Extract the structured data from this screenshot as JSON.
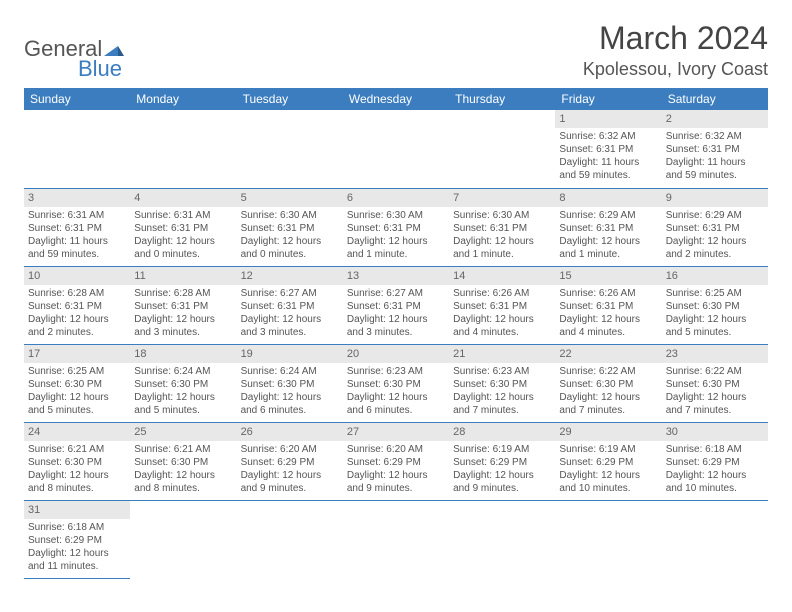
{
  "logo": {
    "part1": "General",
    "part2": "Blue"
  },
  "title": "March 2024",
  "location": "Kpolessou, Ivory Coast",
  "colors": {
    "header_bg": "#3b7dbf",
    "header_text": "#ffffff",
    "daynum_bg": "#e8e8e8",
    "text": "#555555",
    "border": "#3b7dbf"
  },
  "weekdays": [
    "Sunday",
    "Monday",
    "Tuesday",
    "Wednesday",
    "Thursday",
    "Friday",
    "Saturday"
  ],
  "weeks": [
    [
      null,
      null,
      null,
      null,
      null,
      {
        "n": "1",
        "sr": "Sunrise: 6:32 AM",
        "ss": "Sunset: 6:31 PM",
        "d1": "Daylight: 11 hours",
        "d2": "and 59 minutes."
      },
      {
        "n": "2",
        "sr": "Sunrise: 6:32 AM",
        "ss": "Sunset: 6:31 PM",
        "d1": "Daylight: 11 hours",
        "d2": "and 59 minutes."
      }
    ],
    [
      {
        "n": "3",
        "sr": "Sunrise: 6:31 AM",
        "ss": "Sunset: 6:31 PM",
        "d1": "Daylight: 11 hours",
        "d2": "and 59 minutes."
      },
      {
        "n": "4",
        "sr": "Sunrise: 6:31 AM",
        "ss": "Sunset: 6:31 PM",
        "d1": "Daylight: 12 hours",
        "d2": "and 0 minutes."
      },
      {
        "n": "5",
        "sr": "Sunrise: 6:30 AM",
        "ss": "Sunset: 6:31 PM",
        "d1": "Daylight: 12 hours",
        "d2": "and 0 minutes."
      },
      {
        "n": "6",
        "sr": "Sunrise: 6:30 AM",
        "ss": "Sunset: 6:31 PM",
        "d1": "Daylight: 12 hours",
        "d2": "and 1 minute."
      },
      {
        "n": "7",
        "sr": "Sunrise: 6:30 AM",
        "ss": "Sunset: 6:31 PM",
        "d1": "Daylight: 12 hours",
        "d2": "and 1 minute."
      },
      {
        "n": "8",
        "sr": "Sunrise: 6:29 AM",
        "ss": "Sunset: 6:31 PM",
        "d1": "Daylight: 12 hours",
        "d2": "and 1 minute."
      },
      {
        "n": "9",
        "sr": "Sunrise: 6:29 AM",
        "ss": "Sunset: 6:31 PM",
        "d1": "Daylight: 12 hours",
        "d2": "and 2 minutes."
      }
    ],
    [
      {
        "n": "10",
        "sr": "Sunrise: 6:28 AM",
        "ss": "Sunset: 6:31 PM",
        "d1": "Daylight: 12 hours",
        "d2": "and 2 minutes."
      },
      {
        "n": "11",
        "sr": "Sunrise: 6:28 AM",
        "ss": "Sunset: 6:31 PM",
        "d1": "Daylight: 12 hours",
        "d2": "and 3 minutes."
      },
      {
        "n": "12",
        "sr": "Sunrise: 6:27 AM",
        "ss": "Sunset: 6:31 PM",
        "d1": "Daylight: 12 hours",
        "d2": "and 3 minutes."
      },
      {
        "n": "13",
        "sr": "Sunrise: 6:27 AM",
        "ss": "Sunset: 6:31 PM",
        "d1": "Daylight: 12 hours",
        "d2": "and 3 minutes."
      },
      {
        "n": "14",
        "sr": "Sunrise: 6:26 AM",
        "ss": "Sunset: 6:31 PM",
        "d1": "Daylight: 12 hours",
        "d2": "and 4 minutes."
      },
      {
        "n": "15",
        "sr": "Sunrise: 6:26 AM",
        "ss": "Sunset: 6:31 PM",
        "d1": "Daylight: 12 hours",
        "d2": "and 4 minutes."
      },
      {
        "n": "16",
        "sr": "Sunrise: 6:25 AM",
        "ss": "Sunset: 6:30 PM",
        "d1": "Daylight: 12 hours",
        "d2": "and 5 minutes."
      }
    ],
    [
      {
        "n": "17",
        "sr": "Sunrise: 6:25 AM",
        "ss": "Sunset: 6:30 PM",
        "d1": "Daylight: 12 hours",
        "d2": "and 5 minutes."
      },
      {
        "n": "18",
        "sr": "Sunrise: 6:24 AM",
        "ss": "Sunset: 6:30 PM",
        "d1": "Daylight: 12 hours",
        "d2": "and 5 minutes."
      },
      {
        "n": "19",
        "sr": "Sunrise: 6:24 AM",
        "ss": "Sunset: 6:30 PM",
        "d1": "Daylight: 12 hours",
        "d2": "and 6 minutes."
      },
      {
        "n": "20",
        "sr": "Sunrise: 6:23 AM",
        "ss": "Sunset: 6:30 PM",
        "d1": "Daylight: 12 hours",
        "d2": "and 6 minutes."
      },
      {
        "n": "21",
        "sr": "Sunrise: 6:23 AM",
        "ss": "Sunset: 6:30 PM",
        "d1": "Daylight: 12 hours",
        "d2": "and 7 minutes."
      },
      {
        "n": "22",
        "sr": "Sunrise: 6:22 AM",
        "ss": "Sunset: 6:30 PM",
        "d1": "Daylight: 12 hours",
        "d2": "and 7 minutes."
      },
      {
        "n": "23",
        "sr": "Sunrise: 6:22 AM",
        "ss": "Sunset: 6:30 PM",
        "d1": "Daylight: 12 hours",
        "d2": "and 7 minutes."
      }
    ],
    [
      {
        "n": "24",
        "sr": "Sunrise: 6:21 AM",
        "ss": "Sunset: 6:30 PM",
        "d1": "Daylight: 12 hours",
        "d2": "and 8 minutes."
      },
      {
        "n": "25",
        "sr": "Sunrise: 6:21 AM",
        "ss": "Sunset: 6:30 PM",
        "d1": "Daylight: 12 hours",
        "d2": "and 8 minutes."
      },
      {
        "n": "26",
        "sr": "Sunrise: 6:20 AM",
        "ss": "Sunset: 6:29 PM",
        "d1": "Daylight: 12 hours",
        "d2": "and 9 minutes."
      },
      {
        "n": "27",
        "sr": "Sunrise: 6:20 AM",
        "ss": "Sunset: 6:29 PM",
        "d1": "Daylight: 12 hours",
        "d2": "and 9 minutes."
      },
      {
        "n": "28",
        "sr": "Sunrise: 6:19 AM",
        "ss": "Sunset: 6:29 PM",
        "d1": "Daylight: 12 hours",
        "d2": "and 9 minutes."
      },
      {
        "n": "29",
        "sr": "Sunrise: 6:19 AM",
        "ss": "Sunset: 6:29 PM",
        "d1": "Daylight: 12 hours",
        "d2": "and 10 minutes."
      },
      {
        "n": "30",
        "sr": "Sunrise: 6:18 AM",
        "ss": "Sunset: 6:29 PM",
        "d1": "Daylight: 12 hours",
        "d2": "and 10 minutes."
      }
    ],
    [
      {
        "n": "31",
        "sr": "Sunrise: 6:18 AM",
        "ss": "Sunset: 6:29 PM",
        "d1": "Daylight: 12 hours",
        "d2": "and 11 minutes."
      },
      null,
      null,
      null,
      null,
      null,
      null
    ]
  ]
}
